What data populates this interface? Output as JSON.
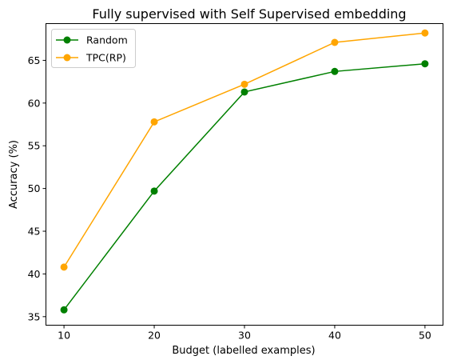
{
  "chart_data": {
    "type": "line",
    "title": "Fully supervised with Self Supervised embedding",
    "xlabel": "Budget (labelled examples)",
    "ylabel": "Accuracy (%)",
    "x": [
      10,
      20,
      30,
      40,
      50
    ],
    "xticks": [
      "10",
      "20",
      "30",
      "40",
      "50"
    ],
    "yticks": [
      "35",
      "40",
      "45",
      "50",
      "55",
      "60",
      "65"
    ],
    "xlim": [
      8,
      52
    ],
    "ylim": [
      34,
      69.3
    ],
    "grid": false,
    "legend_position": "top-left",
    "series": [
      {
        "name": "Random",
        "color": "#008000",
        "values": [
          35.8,
          49.7,
          61.3,
          63.7,
          64.6
        ]
      },
      {
        "name": "TPC(RP)",
        "color": "#ffa500",
        "values": [
          40.8,
          57.8,
          62.2,
          67.1,
          68.2
        ]
      }
    ]
  }
}
